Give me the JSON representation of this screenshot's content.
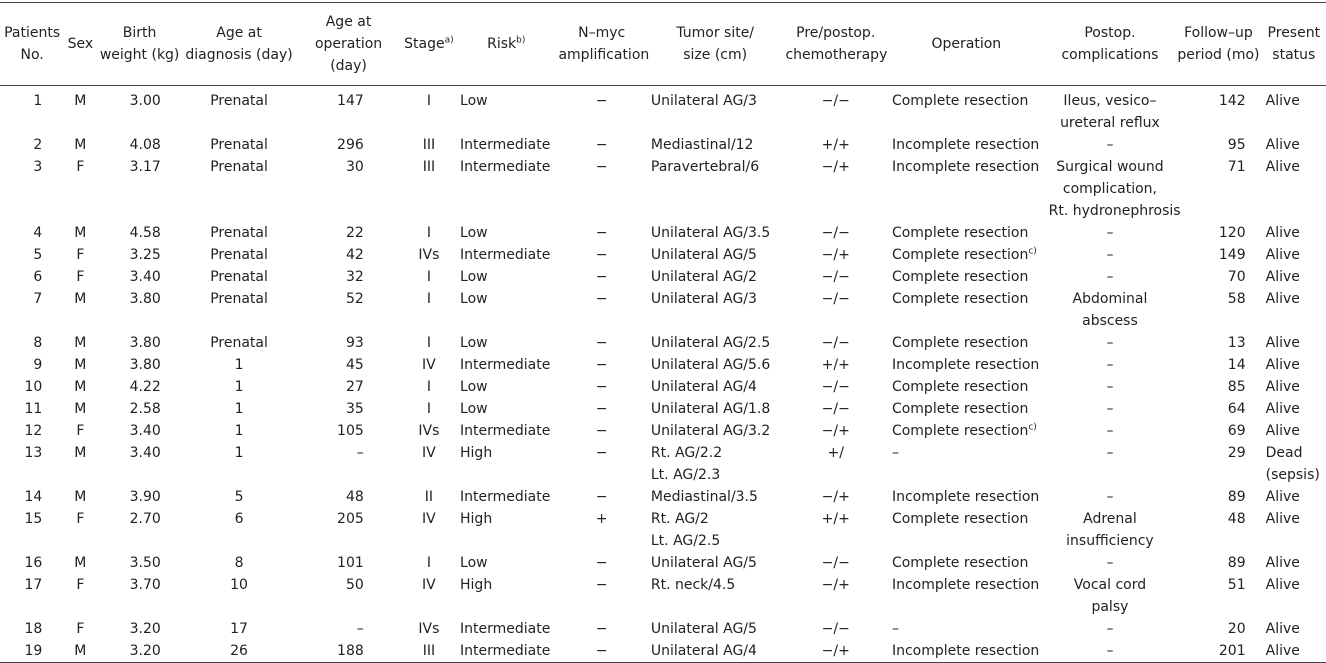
{
  "table": {
    "header": [
      [
        "Patients",
        "No."
      ],
      [
        "Sex"
      ],
      [
        "Birth",
        "weight (kg)"
      ],
      [
        "Age at",
        "diagnosis (day)"
      ],
      [
        "Age at",
        "operation (day)"
      ],
      {
        "text": "Stage",
        "sup": "a)"
      },
      {
        "text": "Risk",
        "sup": "b)"
      },
      [
        "N–myc",
        "amplification"
      ],
      [
        "Tumor site/",
        "size (cm)"
      ],
      [
        "Pre/postop.",
        "chemotherapy"
      ],
      [
        "Operation"
      ],
      [
        "Postop.",
        "complications"
      ],
      [
        "Follow–up",
        "period (mo)"
      ],
      [
        "Present",
        "status"
      ]
    ],
    "rows": [
      [
        "1",
        "M",
        "3.00",
        "Prenatal",
        "147",
        "I",
        "Low",
        "−",
        "Unilateral AG/3",
        "−/−",
        "Complete resection",
        [
          "Ileus, vesico–",
          "ureteral reflux"
        ],
        "142",
        "Alive"
      ],
      [
        "2",
        "M",
        "4.08",
        "Prenatal",
        "296",
        "III",
        "Intermediate",
        "−",
        "Mediastinal/12",
        "+/+",
        "Incomplete resection",
        "–",
        "95",
        "Alive"
      ],
      [
        "3",
        "F",
        "3.17",
        "Prenatal",
        "30",
        "III",
        "Intermediate",
        "−",
        "Paravertebral/6",
        "−/+",
        "Incomplete resection",
        [
          "Surgical wound",
          "complication,",
          "Rt. hydronephrosis"
        ],
        "71",
        "Alive"
      ],
      [
        "4",
        "M",
        "4.58",
        "Prenatal",
        "22",
        "I",
        "Low",
        "−",
        "Unilateral AG/3.5",
        "−/−",
        "Complete resection",
        "–",
        "120",
        "Alive"
      ],
      [
        "5",
        "F",
        "3.25",
        "Prenatal",
        "42",
        "IVs",
        "Intermediate",
        "−",
        "Unilateral AG/5",
        "−/+",
        {
          "text": "Complete resection",
          "sup": "c)"
        },
        "–",
        "149",
        "Alive"
      ],
      [
        "6",
        "F",
        "3.40",
        "Prenatal",
        "32",
        "I",
        "Low",
        "−",
        "Unilateral AG/2",
        "−/−",
        "Complete resection",
        "–",
        "70",
        "Alive"
      ],
      [
        "7",
        "M",
        "3.80",
        "Prenatal",
        "52",
        "I",
        "Low",
        "−",
        "Unilateral AG/3",
        "−/−",
        "Complete resection",
        [
          "Abdominal",
          "abscess"
        ],
        "58",
        "Alive"
      ],
      [
        "8",
        "M",
        "3.80",
        "Prenatal",
        "93",
        "I",
        "Low",
        "−",
        "Unilateral AG/2.5",
        "−/−",
        "Complete resection",
        "–",
        "13",
        "Alive"
      ],
      [
        "9",
        "M",
        "3.80",
        "1",
        "45",
        "IV",
        "Intermediate",
        "−",
        "Unilateral AG/5.6",
        "+/+",
        "Incomplete resection",
        "–",
        "14",
        "Alive"
      ],
      [
        "10",
        "M",
        "4.22",
        "1",
        "27",
        "I",
        "Low",
        "−",
        "Unilateral AG/4",
        "−/−",
        "Complete resection",
        "–",
        "85",
        "Alive"
      ],
      [
        "11",
        "M",
        "2.58",
        "1",
        "35",
        "I",
        "Low",
        "−",
        "Unilateral AG/1.8",
        "−/−",
        "Complete resection",
        "–",
        "64",
        "Alive"
      ],
      [
        "12",
        "F",
        "3.40",
        "1",
        "105",
        "IVs",
        "Intermediate",
        "−",
        "Unilateral AG/3.2",
        "−/+",
        {
          "text": "Complete resection",
          "sup": "c)"
        },
        "–",
        "69",
        "Alive"
      ],
      [
        "13",
        "M",
        "3.40",
        "1",
        "–",
        "IV",
        "High",
        "−",
        [
          "Rt. AG/2.2",
          "Lt. AG/2.3"
        ],
        "+/",
        "–",
        "–",
        "29",
        [
          "Dead",
          "(sepsis)"
        ]
      ],
      [
        "14",
        "M",
        "3.90",
        "5",
        "48",
        "II",
        "Intermediate",
        "−",
        "Mediastinal/3.5",
        "−/+",
        "Incomplete resection",
        "–",
        "89",
        "Alive"
      ],
      [
        "15",
        "F",
        "2.70",
        "6",
        "205",
        "IV",
        "High",
        "+",
        [
          "Rt. AG/2",
          "Lt. AG/2.5"
        ],
        "+/+",
        "Complete resection",
        [
          "Adrenal",
          "insufficiency"
        ],
        "48",
        "Alive"
      ],
      [
        "16",
        "M",
        "3.50",
        "8",
        "101",
        "I",
        "Low",
        "−",
        "Unilateral AG/5",
        "−/−",
        "Complete resection",
        "–",
        "89",
        "Alive"
      ],
      [
        "17",
        "F",
        "3.70",
        "10",
        "50",
        "IV",
        "High",
        "−",
        "Rt. neck/4.5",
        "−/+",
        "Incomplete resection",
        [
          "Vocal cord",
          "palsy"
        ],
        "51",
        "Alive"
      ],
      [
        "18",
        "F",
        "3.20",
        "17",
        "–",
        "IVs",
        "Intermediate",
        "−",
        "Unilateral AG/5",
        "−/−",
        "–",
        "–",
        "20",
        "Alive"
      ],
      [
        "19",
        "M",
        "3.20",
        "26",
        "188",
        "III",
        "Intermediate",
        "−",
        "Unilateral AG/4",
        "−/+",
        "Incomplete resection",
        "–",
        "201",
        "Alive"
      ]
    ]
  }
}
